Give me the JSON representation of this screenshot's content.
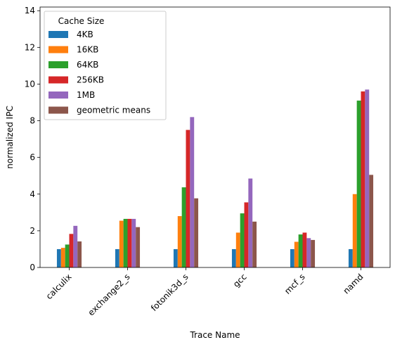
{
  "chart_data": {
    "type": "bar",
    "title": "",
    "xlabel": "Trace Name",
    "ylabel": "normalized IPC",
    "ylim": [
      0,
      14.2
    ],
    "yticks": [
      0,
      2,
      4,
      6,
      8,
      10,
      12,
      14
    ],
    "grid": false,
    "legend": {
      "title": "Cache Size",
      "placement": "top-left"
    },
    "categories": [
      "calculix",
      "exchange2_s",
      "fotonik3d_s",
      "gcc",
      "mcf_s",
      "namd"
    ],
    "series": [
      {
        "name": "4KB",
        "color": "#1f77b4",
        "values": [
          1.0,
          1.0,
          1.0,
          1.0,
          1.0,
          1.0
        ]
      },
      {
        "name": "16KB",
        "color": "#ff7f0e",
        "values": [
          1.07,
          2.55,
          2.8,
          1.9,
          1.4,
          4.0
        ]
      },
      {
        "name": "64KB",
        "color": "#2ca02c",
        "values": [
          1.25,
          2.65,
          4.37,
          2.95,
          1.8,
          9.1
        ]
      },
      {
        "name": "256KB",
        "color": "#d62728",
        "values": [
          1.83,
          2.65,
          7.5,
          3.55,
          1.9,
          9.6
        ]
      },
      {
        "name": "1MB",
        "color": "#9467bd",
        "values": [
          2.27,
          2.65,
          8.2,
          4.85,
          1.6,
          9.7
        ]
      },
      {
        "name": "geometric means",
        "color": "#8c564b",
        "values": [
          1.42,
          2.2,
          3.77,
          2.5,
          1.5,
          5.05
        ]
      }
    ]
  }
}
